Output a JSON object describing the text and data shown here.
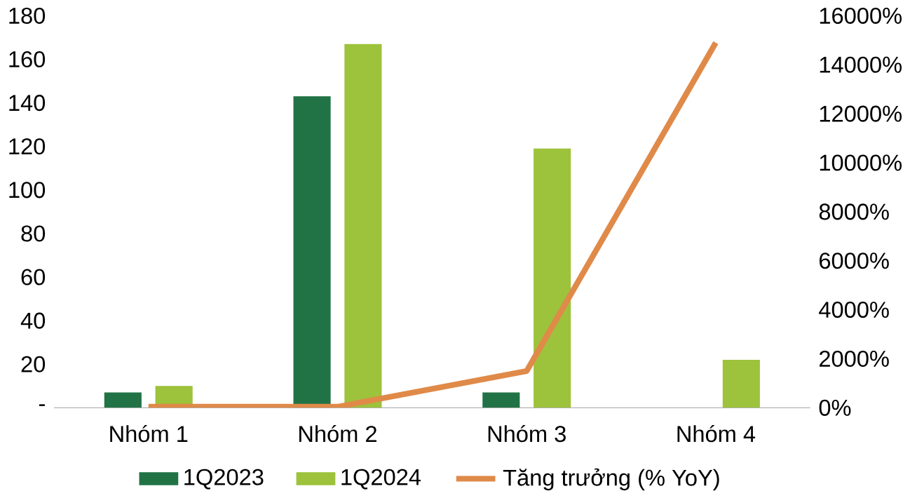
{
  "chart_data": {
    "type": "bar",
    "categories": [
      "Nhóm 1",
      "Nhóm 2",
      "Nhóm 3",
      "Nhóm 4"
    ],
    "series": [
      {
        "name": "1Q2023",
        "color": "#217346",
        "values": [
          7,
          143,
          7,
          null
        ]
      },
      {
        "name": "1Q2024",
        "color": "#9dc23b",
        "values": [
          10,
          167,
          119,
          22
        ]
      },
      {
        "name": "Tăng trưởng (% YoY)",
        "type": "line",
        "axis": "y2",
        "color": "#e08a49",
        "values": [
          40,
          40,
          1500,
          14900
        ]
      }
    ],
    "ylim": [
      0,
      180
    ],
    "yticks": [
      {
        "value": 0,
        "label": "-"
      },
      20,
      40,
      60,
      80,
      100,
      120,
      140,
      160,
      180
    ],
    "y2lim": [
      0,
      16000
    ],
    "y2ticks": [
      {
        "value": 0,
        "label": "0%"
      },
      {
        "value": 2000,
        "label": "2000%"
      },
      {
        "value": 4000,
        "label": "4000%"
      },
      {
        "value": 6000,
        "label": "6000%"
      },
      {
        "value": 8000,
        "label": "8000%"
      },
      {
        "value": 10000,
        "label": "10000%"
      },
      {
        "value": 12000,
        "label": "12000%"
      },
      {
        "value": 14000,
        "label": "14000%"
      },
      {
        "value": 16000,
        "label": "16000%"
      }
    ],
    "legend": "bottom",
    "grid": false,
    "marker": "none",
    "line_style": "solid"
  }
}
